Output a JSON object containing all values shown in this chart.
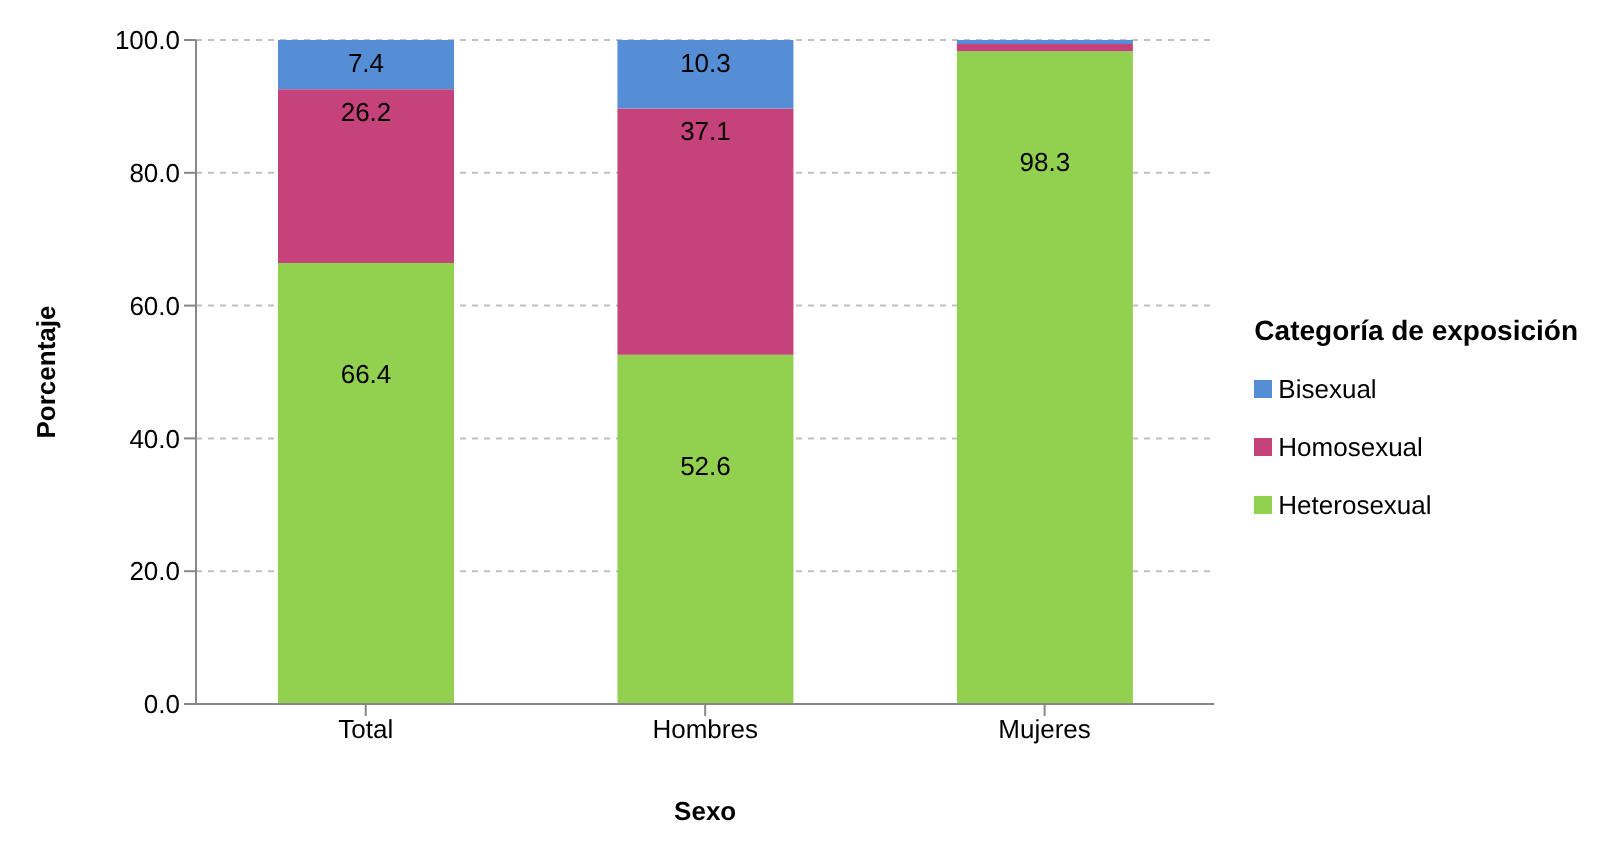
{
  "chart_data": {
    "type": "bar",
    "stacked": true,
    "xlabel": "Sexo",
    "ylabel": "Porcentaje",
    "legend_title": "Categoría de exposición",
    "categories": [
      "Total",
      "Hombres",
      "Mujeres"
    ],
    "series": [
      {
        "name": "Heterosexual",
        "color": "#92d050",
        "values": [
          66.4,
          52.6,
          98.3
        ],
        "value_labels": [
          "66.4",
          "52.6",
          "98.3"
        ]
      },
      {
        "name": "Homosexual",
        "color": "#c6427a",
        "values": [
          26.2,
          37.1,
          1.1
        ],
        "value_labels": [
          "26.2",
          "37.1",
          null
        ]
      },
      {
        "name": "Bisexual",
        "color": "#558ed5",
        "values": [
          7.4,
          10.3,
          0.6
        ],
        "value_labels": [
          "7.4",
          "10.3",
          null
        ]
      }
    ],
    "ylim": [
      0,
      100
    ],
    "yticks": [
      {
        "value": 0,
        "label": "0.0"
      },
      {
        "value": 20,
        "label": "20.0"
      },
      {
        "value": 40,
        "label": "40.0"
      },
      {
        "value": 60,
        "label": "60.0"
      },
      {
        "value": 80,
        "label": "80.0"
      },
      {
        "value": 100,
        "label": "100.0"
      }
    ],
    "grid": "y",
    "legend": "right"
  }
}
